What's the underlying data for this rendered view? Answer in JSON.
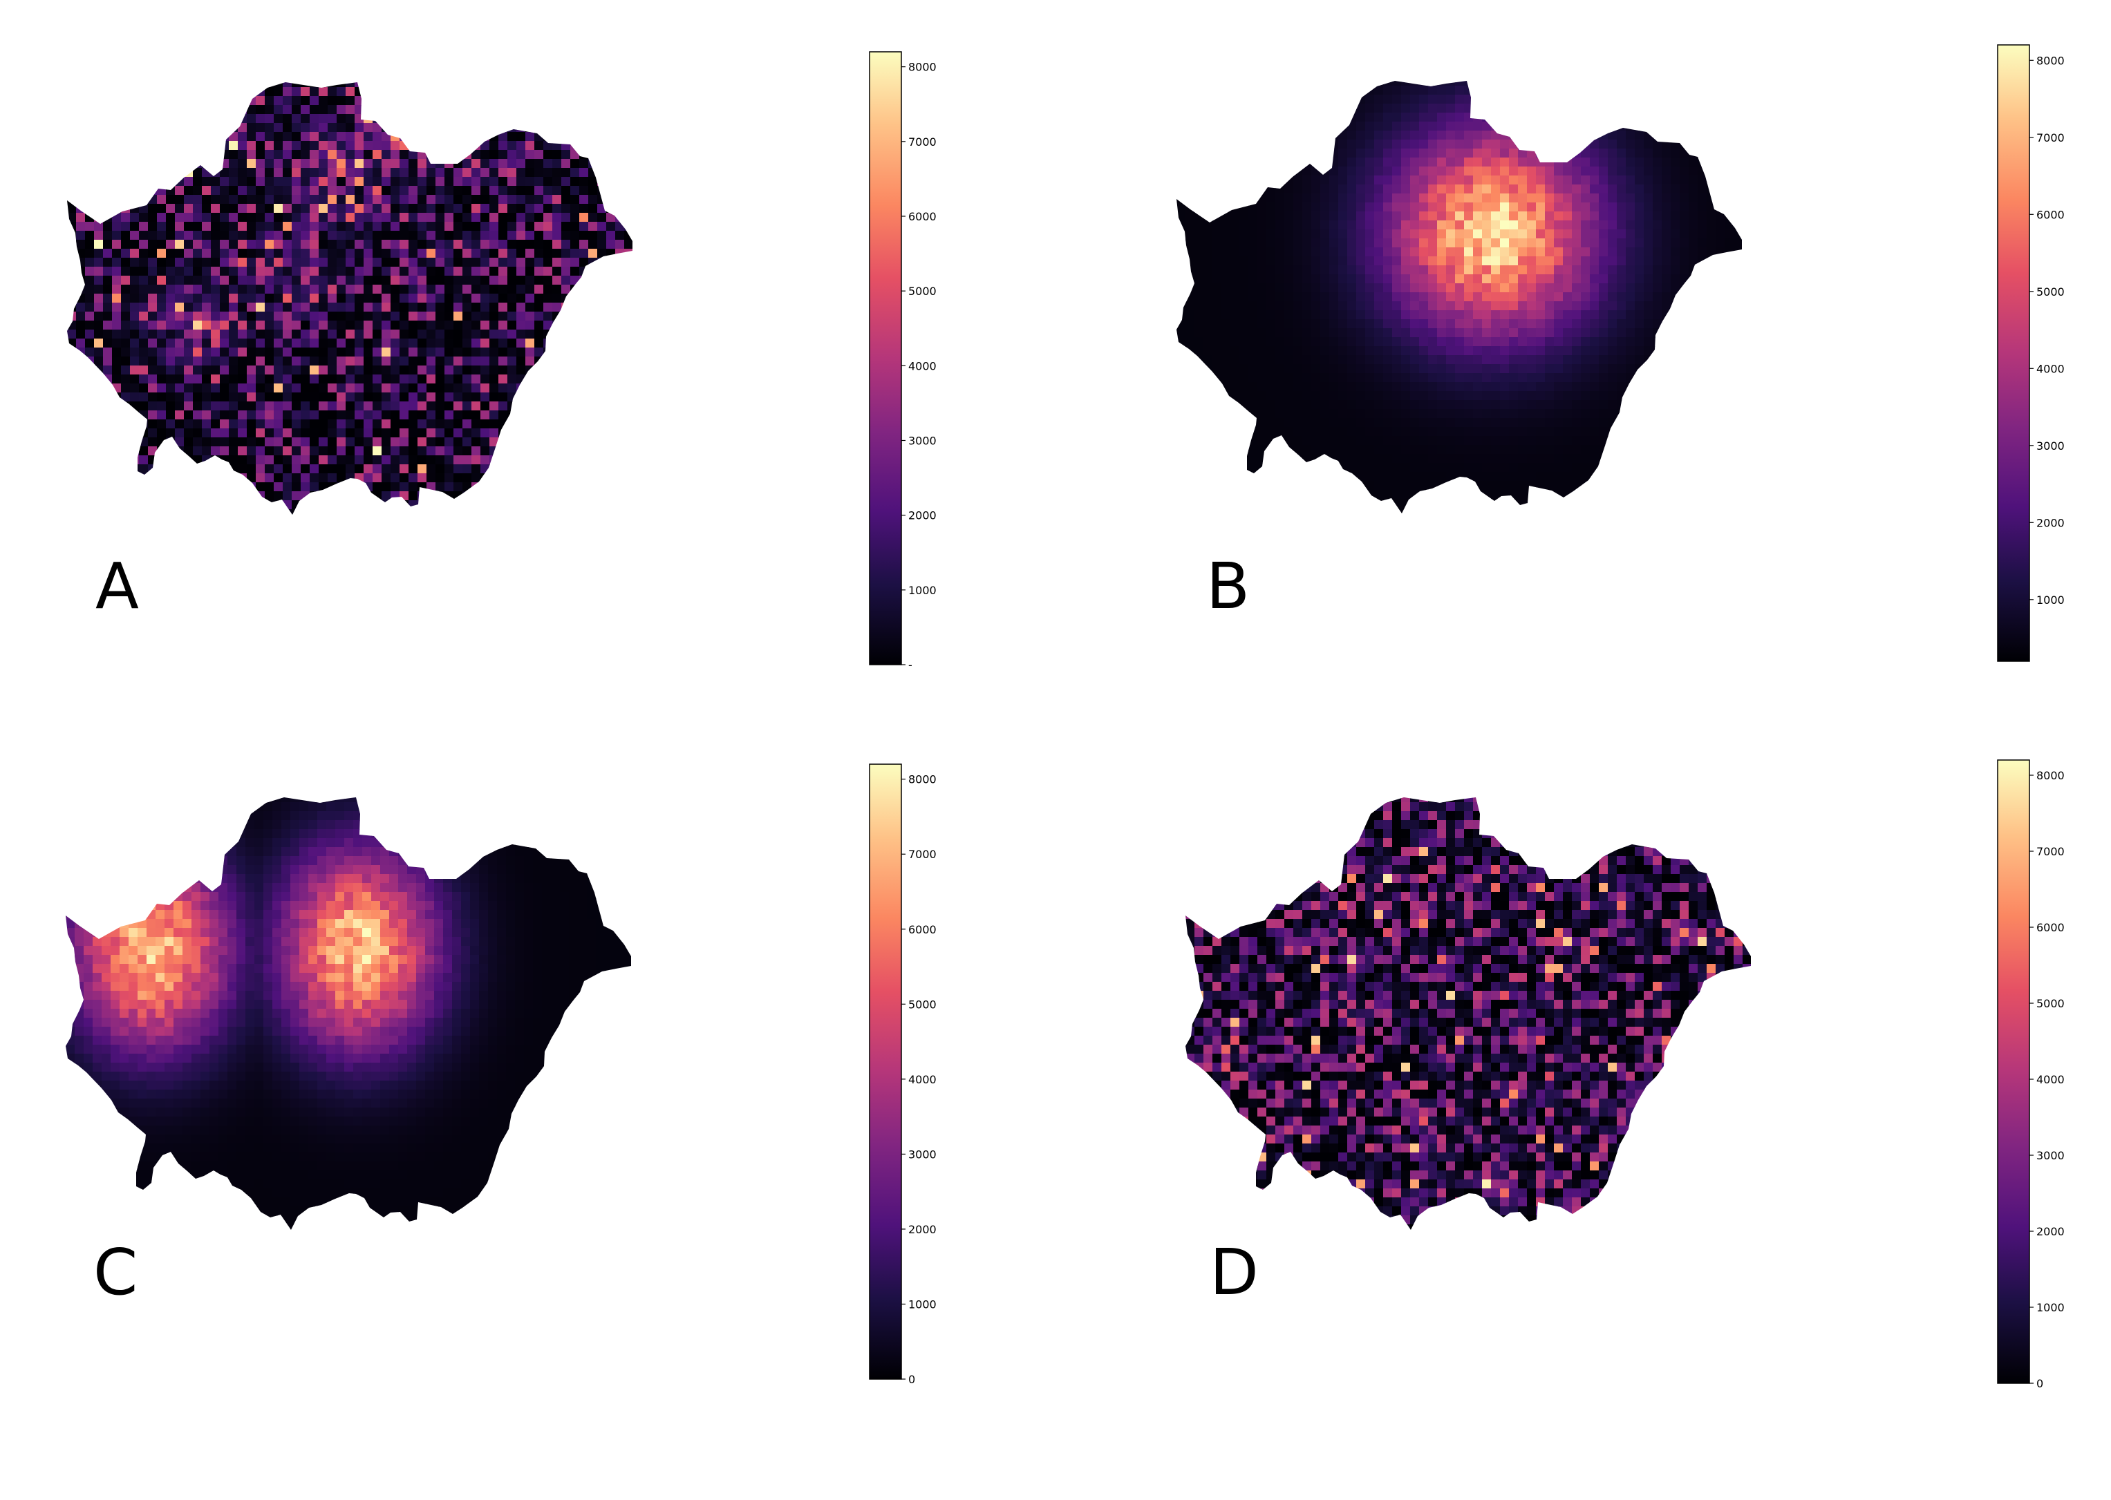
{
  "colormap": "magma",
  "background": "#ffffff",
  "chart_data": [
    {
      "type": "heatmap",
      "panel": "A",
      "pattern": "clustered-random",
      "vmin": 0,
      "vmax": 8200,
      "colorbar_ticks": [
        0,
        1000,
        2000,
        3000,
        4000,
        5000,
        6000,
        7000,
        8000
      ],
      "colorbar_tick_labels": [
        "-",
        "1000",
        "2000",
        "3000",
        "4000",
        "5000",
        "6000",
        "7000",
        "8000"
      ],
      "peak_value": 8000
    },
    {
      "type": "heatmap",
      "panel": "B",
      "pattern": "single-centre",
      "vmin": 200,
      "vmax": 8200,
      "colorbar_ticks": [
        1000,
        2000,
        3000,
        4000,
        5000,
        6000,
        7000,
        8000
      ],
      "colorbar_tick_labels": [
        "1000",
        "2000",
        "3000",
        "4000",
        "5000",
        "6000",
        "7000",
        "8000"
      ],
      "peak_value": 8000
    },
    {
      "type": "heatmap",
      "panel": "C",
      "pattern": "two-centres",
      "vmin": 0,
      "vmax": 8200,
      "colorbar_ticks": [
        0,
        1000,
        2000,
        3000,
        4000,
        5000,
        6000,
        7000,
        8000
      ],
      "colorbar_tick_labels": [
        "0",
        "1000",
        "2000",
        "3000",
        "4000",
        "5000",
        "6000",
        "7000",
        "8000"
      ],
      "peak_value": 8000
    },
    {
      "type": "heatmap",
      "panel": "D",
      "pattern": "uniform-random",
      "vmin": 0,
      "vmax": 8200,
      "colorbar_ticks": [
        0,
        1000,
        2000,
        3000,
        4000,
        5000,
        6000,
        7000,
        8000
      ],
      "colorbar_tick_labels": [
        "0",
        "1000",
        "2000",
        "3000",
        "4000",
        "5000",
        "6000",
        "7000",
        "8000"
      ],
      "peak_value": 8000
    }
  ]
}
